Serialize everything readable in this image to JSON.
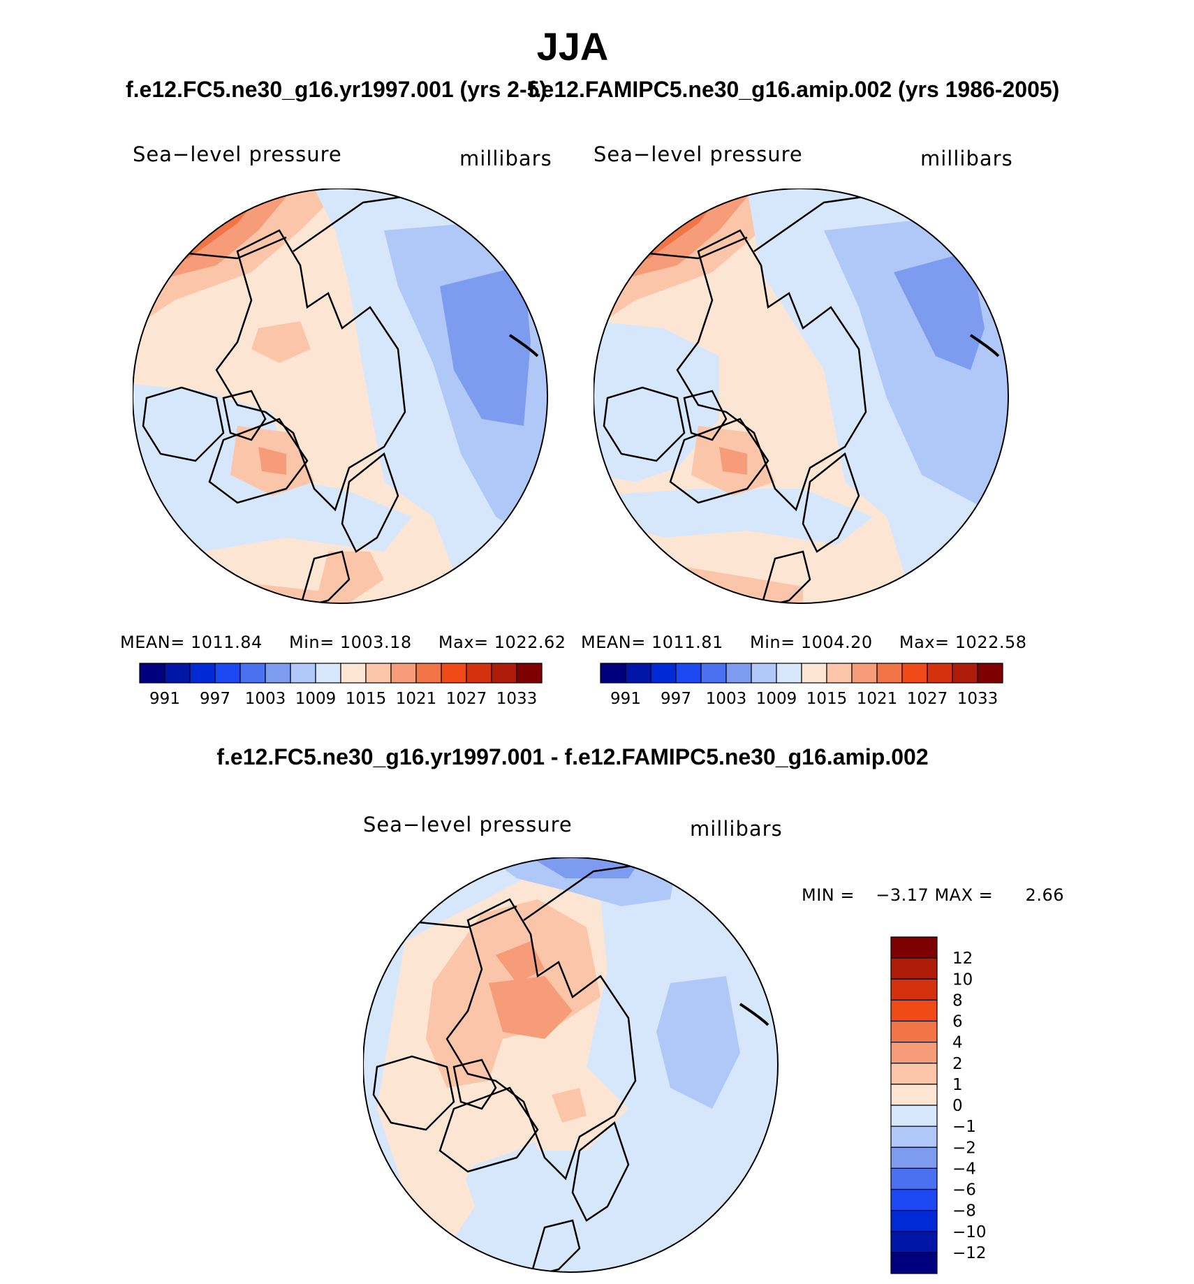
{
  "title": "JJA",
  "colors": {
    "full_scale": [
      "#00007f",
      "#0016a6",
      "#002ad6",
      "#1b48f0",
      "#4a71f0",
      "#7d9cf0",
      "#b0c8f7",
      "#d6e7fb",
      "#fde5d4",
      "#fbc5aa",
      "#f69c78",
      "#f17546",
      "#ef4a17",
      "#d4320c",
      "#ac1c08",
      "#7f0000"
    ],
    "diff_scale": [
      "#00007f",
      "#0016a6",
      "#002ad6",
      "#1b48f0",
      "#4a71f0",
      "#7d9cf0",
      "#b0c8f7",
      "#d6e7fb",
      "#fde5d4",
      "#fbc5aa",
      "#f69c78",
      "#f17546",
      "#ef4a17",
      "#d4320c",
      "#ac1c08",
      "#7f0000"
    ],
    "land_outline": "#000000"
  },
  "panels": {
    "left": {
      "case_title": "f.e12.FC5.ne30_g16.yr1997.001 (yrs 2-5)",
      "variable": "Sea−level pressure",
      "units": "millibars",
      "mean_label": "MEAN=",
      "mean": "1011.84",
      "min_label": "Min=",
      "min": "1003.18",
      "max_label": "Max=",
      "max": "1022.62"
    },
    "right": {
      "case_title": "f.e12.FAMIPC5.ne30_g16.amip.002 (yrs 1986-2005)",
      "variable": "Sea−level pressure",
      "units": "millibars",
      "mean_label": "MEAN=",
      "mean": "1011.81",
      "min_label": "Min=",
      "min": "1004.20",
      "max_label": "Max=",
      "max": "1022.58"
    },
    "diff": {
      "case_title": "f.e12.FC5.ne30_g16.yr1997.001 - f.e12.FAMIPC5.ne30_g16.amip.002",
      "variable": "Sea−level pressure",
      "units": "millibars",
      "min_label": "MIN =",
      "min": "−3.17",
      "max_label": "MAX =",
      "max": "2.66"
    }
  },
  "chart_data": [
    {
      "type": "heatmap",
      "title": "Sea−level pressure",
      "units": "millibars",
      "projection": "north polar stereographic",
      "stats": {
        "mean": 1011.84,
        "min": 1003.18,
        "max": 1022.62
      },
      "colorbar_ticks": [
        "991",
        "997",
        "1003",
        "1009",
        "1015",
        "1021",
        "1027",
        "1033"
      ],
      "levels": [
        991,
        994,
        997,
        1000,
        1003,
        1006,
        1009,
        1012,
        1015,
        1018,
        1021,
        1024,
        1027,
        1030,
        1033
      ]
    },
    {
      "type": "heatmap",
      "title": "Sea−level pressure",
      "units": "millibars",
      "projection": "north polar stereographic",
      "stats": {
        "mean": 1011.81,
        "min": 1004.2,
        "max": 1022.58
      },
      "colorbar_ticks": [
        "991",
        "997",
        "1003",
        "1009",
        "1015",
        "1021",
        "1027",
        "1033"
      ],
      "levels": [
        991,
        994,
        997,
        1000,
        1003,
        1006,
        1009,
        1012,
        1015,
        1018,
        1021,
        1024,
        1027,
        1030,
        1033
      ]
    },
    {
      "type": "heatmap",
      "title": "Sea−level pressure",
      "units": "millibars",
      "projection": "north polar stereographic",
      "stats": {
        "min": -3.17,
        "max": 2.66
      },
      "colorbar_ticks": [
        "12",
        "10",
        "8",
        "6",
        "4",
        "2",
        "1",
        "0",
        "−1",
        "−2",
        "−4",
        "−6",
        "−8",
        "−10",
        "−12"
      ],
      "levels": [
        -12,
        -10,
        -8,
        -6,
        -4,
        -2,
        -1,
        0,
        1,
        2,
        4,
        6,
        8,
        10,
        12
      ]
    }
  ]
}
